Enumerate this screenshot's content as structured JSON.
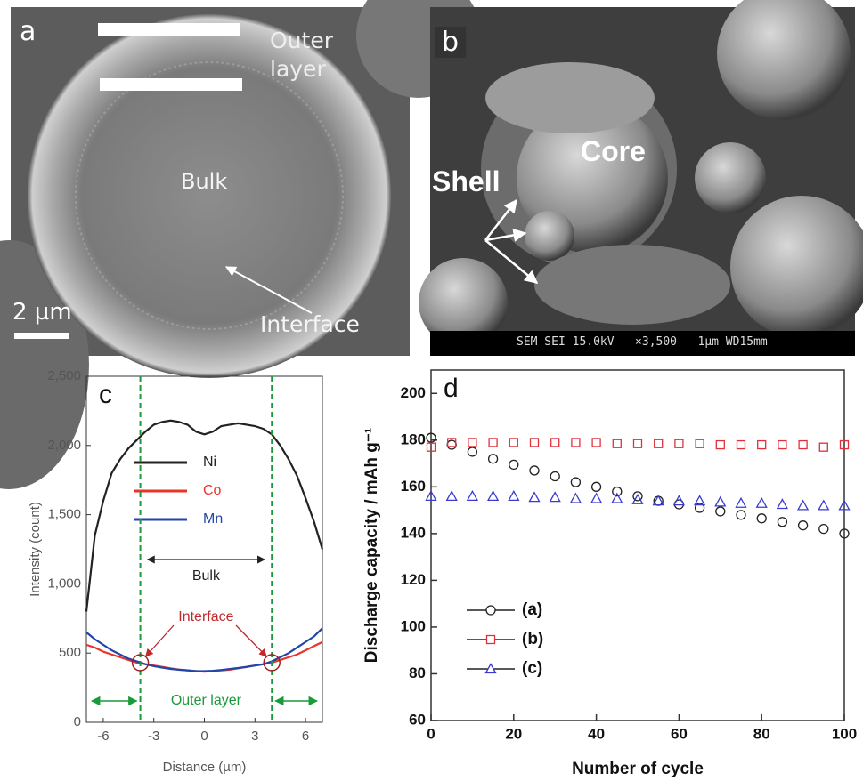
{
  "images": [
    {
      "label": "a",
      "outer_layer": "Outer layer",
      "bulk": "Bulk",
      "interface": "Interface",
      "scale": "2 µm"
    },
    {
      "label": "b",
      "core": "Core",
      "shell": "Shell",
      "info": "SEM SEI 15.0kV   ×3,500   1µm WD15mm"
    }
  ],
  "chart_data": [
    {
      "type": "line",
      "panel": "c",
      "xlabel": "Distance (µm)",
      "ylabel": "Intensity (count)",
      "x": [
        -7,
        -6.5,
        -6,
        -5.5,
        -5,
        -4.5,
        -4,
        -3.5,
        -3,
        -2.5,
        -2,
        -1.5,
        -1,
        -0.5,
        0,
        0.5,
        1,
        1.5,
        2,
        2.5,
        3,
        3.5,
        4,
        4.5,
        5,
        5.5,
        6,
        6.5,
        7
      ],
      "series": [
        {
          "name": "Ni",
          "color": "#222222",
          "values": [
            800,
            1350,
            1600,
            1800,
            1900,
            1980,
            2040,
            2100,
            2150,
            2170,
            2180,
            2170,
            2150,
            2100,
            2080,
            2100,
            2140,
            2150,
            2160,
            2150,
            2140,
            2120,
            2080,
            2000,
            1900,
            1780,
            1620,
            1450,
            1250
          ]
        },
        {
          "name": "Co",
          "color": "#e8352b",
          "values": [
            560,
            540,
            510,
            490,
            470,
            450,
            430,
            420,
            410,
            400,
            390,
            380,
            375,
            370,
            365,
            370,
            375,
            380,
            390,
            400,
            410,
            420,
            430,
            450,
            470,
            490,
            520,
            550,
            580
          ]
        },
        {
          "name": "Mn",
          "color": "#2145a8",
          "values": [
            650,
            600,
            560,
            520,
            490,
            460,
            440,
            420,
            405,
            395,
            385,
            380,
            375,
            370,
            370,
            372,
            378,
            385,
            392,
            400,
            410,
            420,
            440,
            470,
            500,
            540,
            580,
            620,
            680
          ]
        }
      ],
      "xlim": [
        -7,
        7
      ],
      "xticks": [
        -6,
        -3,
        0,
        3,
        6
      ],
      "ylim": [
        0,
        2500
      ],
      "yticks": [
        0,
        {
          "value": 500,
          "label": "500"
        },
        {
          "value": 1000,
          "label": "1,000"
        },
        {
          "value": 1500,
          "label": "1,500"
        },
        {
          "value": 2000,
          "label": "2,000"
        },
        {
          "value": 2500,
          "label": "2,500"
        }
      ],
      "vlines": [
        -3.8,
        4
      ],
      "annotations": {
        "bulk": "Bulk",
        "interface": "Interface",
        "outer_layer": "Outer layer"
      }
    },
    {
      "type": "scatter",
      "panel": "d",
      "xlabel": "Number of cycle",
      "ylabel": "Discharge capacity / mAh g⁻¹",
      "x": [
        0,
        5,
        10,
        15,
        20,
        25,
        30,
        35,
        40,
        45,
        50,
        55,
        60,
        65,
        70,
        75,
        80,
        85,
        90,
        95,
        100
      ],
      "series": [
        {
          "name": "(a)",
          "color": "#222222",
          "marker": "circle",
          "values": [
            181,
            178,
            175,
            172,
            169.5,
            167,
            164.5,
            162,
            160,
            158,
            156,
            154,
            152.5,
            151,
            149.5,
            148,
            146.5,
            145,
            143.5,
            142,
            140
          ]
        },
        {
          "name": "(b)",
          "color": "#e0303a",
          "marker": "square",
          "values": [
            177,
            179,
            179,
            179,
            179,
            179,
            179,
            179,
            179,
            178.5,
            178.5,
            178.5,
            178.5,
            178.5,
            178,
            178,
            178,
            178,
            178,
            177,
            178
          ]
        },
        {
          "name": "(c)",
          "color": "#3a3ad0",
          "marker": "triangle",
          "values": [
            156,
            156,
            156,
            156,
            156,
            155.5,
            155.5,
            155,
            155,
            155,
            154.5,
            154,
            154,
            154,
            153.5,
            153,
            153,
            152.5,
            152,
            152,
            152
          ]
        }
      ],
      "xlim": [
        0,
        100
      ],
      "xticks": [
        0,
        20,
        40,
        60,
        80,
        100
      ],
      "ylim": [
        60,
        210
      ],
      "yticks": [
        60,
        80,
        100,
        120,
        140,
        160,
        180,
        200
      ]
    }
  ]
}
